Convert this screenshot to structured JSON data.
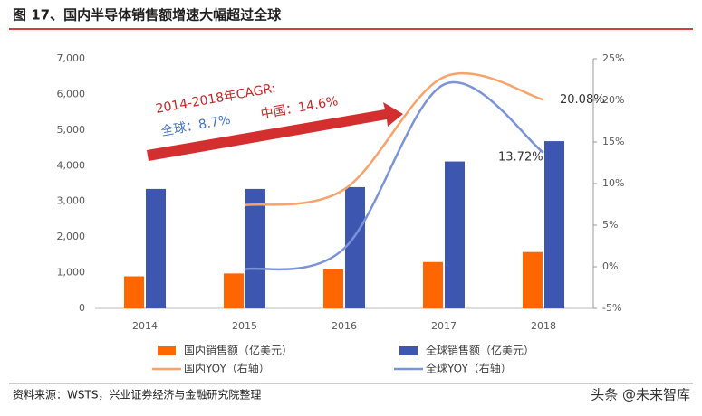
{
  "title": "图 17、国内半导体销售额增速大幅超过全球",
  "source": "资料来源：WSTS，兴业证券经济与金融研究院整理",
  "watermark": "头条 @未来智库",
  "chart_data": {
    "type": "bar-line",
    "annotations": [
      "2014-2018年CAGR:",
      "全球：8.7%",
      "中国：14.6%"
    ],
    "categories": [
      "2014",
      "2015",
      "2016",
      "2017",
      "2018"
    ],
    "series": [
      {
        "name": "国内销售额（亿美元）",
        "color": "#ff6600",
        "type": "bar",
        "values": [
          900,
          980,
          1090,
          1300,
          1580
        ]
      },
      {
        "name": "全球销售额（亿美元）",
        "color": "#3d57b0",
        "type": "bar",
        "values": [
          3350,
          3350,
          3400,
          4120,
          4690
        ]
      },
      {
        "name": "国内YOY（右轴）",
        "color": "#f9a36a",
        "type": "line",
        "axis": "y2",
        "values": [
          null,
          7.4,
          9.3,
          22.8,
          20.08
        ],
        "value_labels": [
          null,
          null,
          null,
          null,
          "20.08%"
        ]
      },
      {
        "name": "全球YOY（右轴）",
        "color": "#7b93d8",
        "type": "line",
        "axis": "y2",
        "values": [
          null,
          -0.3,
          2.2,
          21.9,
          13.72
        ],
        "value_labels": [
          null,
          null,
          null,
          null,
          "13.72%"
        ]
      }
    ],
    "ylim": [
      0,
      7000
    ],
    "yticks": [
      0,
      {
        "value": 1000,
        "label": "1,000"
      },
      {
        "value": 2000,
        "label": "2,000"
      },
      {
        "value": 3000,
        "label": "3,000"
      },
      {
        "value": 4000,
        "label": "4,000"
      },
      {
        "value": 5000,
        "label": "5,000"
      },
      {
        "value": 6000,
        "label": "6,000"
      },
      {
        "value": 7000,
        "label": "7,000"
      }
    ],
    "y2lim": [
      -5,
      25
    ],
    "y2ticks": [
      {
        "value": -5,
        "label": "-5%"
      },
      {
        "value": 0,
        "label": "0%"
      },
      {
        "value": 5,
        "label": "5%"
      },
      {
        "value": 10,
        "label": "10%"
      },
      {
        "value": 15,
        "label": "15%"
      },
      {
        "value": 20,
        "label": "20%"
      },
      {
        "value": 25,
        "label": "25%"
      }
    ]
  }
}
